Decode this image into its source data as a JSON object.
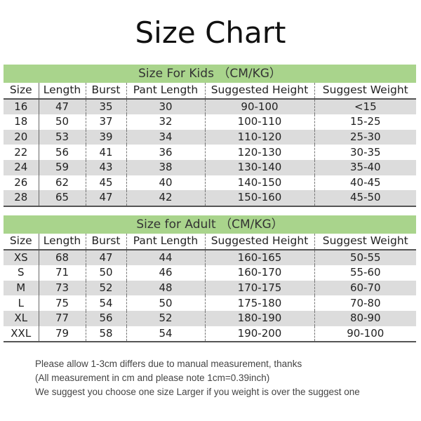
{
  "title": "Size Chart",
  "colors": {
    "band": "#a9d48c",
    "stripe": "#dcdcdc"
  },
  "columns": [
    "Size",
    "Length",
    "Burst",
    "Pant Length",
    "Suggested Height",
    "Suggest Weight"
  ],
  "kids": {
    "heading": "Size For Kids （CM/KG）",
    "rows": [
      [
        "16",
        "47",
        "35",
        "30",
        "90-100",
        "<15"
      ],
      [
        "18",
        "50",
        "37",
        "32",
        "100-110",
        "15-25"
      ],
      [
        "20",
        "53",
        "39",
        "34",
        "110-120",
        "25-30"
      ],
      [
        "22",
        "56",
        "41",
        "36",
        "120-130",
        "30-35"
      ],
      [
        "24",
        "59",
        "43",
        "38",
        "130-140",
        "35-40"
      ],
      [
        "26",
        "62",
        "45",
        "40",
        "140-150",
        "40-45"
      ],
      [
        "28",
        "65",
        "47",
        "42",
        "150-160",
        "45-50"
      ]
    ]
  },
  "adult": {
    "heading": "Size for Adult （CM/KG）",
    "rows": [
      [
        "XS",
        "68",
        "47",
        "44",
        "160-165",
        "50-55"
      ],
      [
        "S",
        "71",
        "50",
        "46",
        "160-170",
        "55-60"
      ],
      [
        "M",
        "73",
        "52",
        "48",
        "170-175",
        "60-70"
      ],
      [
        "L",
        "75",
        "54",
        "50",
        "175-180",
        "70-80"
      ],
      [
        "XL",
        "77",
        "56",
        "52",
        "180-190",
        "80-90"
      ],
      [
        "XXL",
        "79",
        "58",
        "54",
        "190-200",
        "90-100"
      ]
    ]
  },
  "notes": [
    "Please allow 1-3cm differs due to manual measurement, thanks",
    "(All measurement in cm and please note 1cm=0.39inch)",
    "We suggest you choose one size Larger if you weight is over the suggest one"
  ]
}
